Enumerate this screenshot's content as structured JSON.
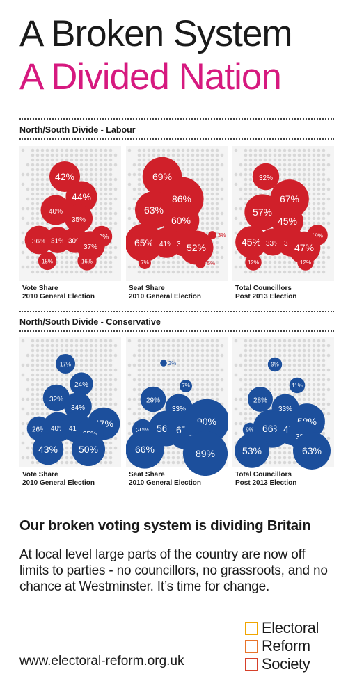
{
  "title_line1": "A Broken System",
  "title_line2": "A Divided Nation",
  "colors": {
    "accent_pink": "#d6197f",
    "labour_red": "#d0202a",
    "conservative_blue": "#1c4f9c",
    "map_dot": "#d8d8d8",
    "panel_bg": "#f4f4f4",
    "logo_boxes": [
      "#f0a500",
      "#e8732a",
      "#d6402a"
    ]
  },
  "sections": [
    {
      "title": "North/South Divide - Labour",
      "party": "labour",
      "panels": [
        {
          "caption_line1": "Vote Share",
          "caption_line2": "2010 General Election",
          "bubbles": [
            42,
            44,
            40,
            35,
            36,
            31,
            30,
            20,
            37,
            15,
            16
          ]
        },
        {
          "caption_line1": "Seat Share",
          "caption_line2": "2010 General Election",
          "bubbles": [
            69,
            86,
            63,
            60,
            3,
            65,
            41,
            33,
            52,
            7,
            5
          ]
        },
        {
          "caption_line1": "Total Councillors",
          "caption_line2": "Post 2013 Election",
          "bubbles": [
            32,
            67,
            57,
            45,
            19,
            45,
            33,
            37,
            47,
            12,
            12
          ]
        }
      ]
    },
    {
      "title": "North/South Divide - Conservative",
      "party": "conservative",
      "panels": [
        {
          "caption_line1": "Vote Share",
          "caption_line2": "2010 General Election",
          "bubbles": [
            17,
            24,
            32,
            34,
            26,
            40,
            41,
            47,
            35,
            43,
            50
          ]
        },
        {
          "caption_line1": "Seat Share",
          "caption_line2": "2010 General Election",
          "bubbles": [
            2,
            7,
            29,
            33,
            20,
            56,
            67,
            90,
            38,
            66,
            89
          ]
        },
        {
          "caption_line1": "Total Councillors",
          "caption_line2": "Post 2013 Election",
          "bubbles": [
            9,
            11,
            28,
            33,
            9,
            66,
            47,
            58,
            39,
            53,
            63
          ]
        }
      ]
    }
  ],
  "headline": "Our broken voting system is dividing Britain",
  "body": "At local level large parts of the country are now off limits to parties - no councillors, no grassroots, and no chance at Westminster. It’s time for change.",
  "url": "www.electoral-reform.org.uk",
  "logo": {
    "line1": "Electoral",
    "line2": "Reform",
    "line3": "Society"
  }
}
